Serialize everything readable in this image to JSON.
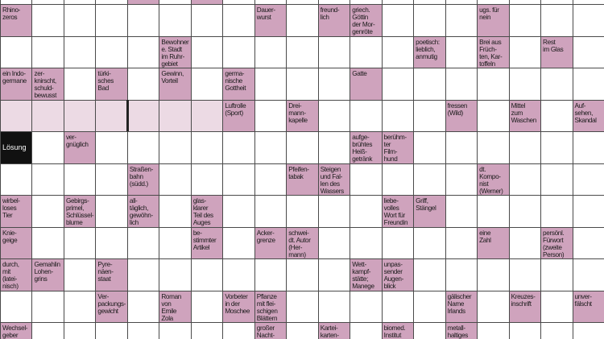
{
  "solution_label": "Lösung",
  "clues": [
    "Rhino-\nzeros",
    "Dauer-\nwurst",
    "freund-\nlich",
    "griech.\nGöttin\nder Mor-\ngenröte",
    "ugs. für\nnein",
    "Bewohner\ne. Stadt\nim Ruhr-\ngebiet",
    "poetisch:\nlieblich,\nanmutig",
    "Brei aus\nFrüch-\nten, Kar-\ntoffeln",
    "Rest\nim Glas",
    "ein Indo-\ngermane",
    "zer-\nknirscht,\nschuld-\nbewusst",
    "türki-\nsches\nBad",
    "Gewinn,\nVorteil",
    "germa-\nnische\nGottheit",
    "Gatte",
    "Luftrolle\n(Sport)",
    "Drei-\nmann-\nkapelle",
    "fressen\n(Wild)",
    "Mittel\nzum\nWaschen",
    "Auf-\nsehen,\nSkandal",
    "ver-\ngnüglich",
    "aufge-\nbrühtes\nHeiß-\ngetränk",
    "berühm-\nter\nFilm-\nhund",
    "Straßen-\nbahn\n(südd.)",
    "Pfeifen-\ntabak",
    "Steigen\nund Fal-\nlen des\nWassers",
    "dt.\nKompo-\nnist\n(Werner)",
    "wirbel-\nloses\nTier",
    "Gebirgs-\nprimel,\nSchlüssel-\nblume",
    "all-\ntäglich,\ngewöhn-\nlich",
    "glas-\nklarer\nTeil des\nAuges",
    "liebe-\nvolles\nWort für\nFreundin",
    "Griff,\nStängel",
    "Knie-\ngeige",
    "be-\nstimmter\nArtikel",
    "Acker-\ngrenze",
    "schwei-\ndt. Autor\n(Her-\nmann)",
    "eine\nZahl",
    "persönl.\nFürwort\n(zweite\nPerson)",
    "durch,\nmit\n(latei-\nnisch)",
    "Gemahlin\nLohen-\ngrins",
    "Pyre-\nnäen-\nstaat",
    "Wett-\nkampf-\nstätte;\nManege",
    "unpas-\nsender\nAugen-\nblick",
    "Ver-\npackungs-\ngewicht",
    "Roman\nvon\nEmile\nZola",
    "Vorbeter\nin der\nMoschee",
    "Pflanze\nmit flei-\nschigen\nBlättern",
    "gälischer\nName\nIrlands",
    "Kreuzes-\ninschrift",
    "unver-\nfälscht",
    "Wechsel-\ngeber",
    "großer\nNacht-",
    "Kartei-\nkarten-\nkasten",
    "biomed.\nInstitut",
    "metall-\nhaltiges"
  ]
}
